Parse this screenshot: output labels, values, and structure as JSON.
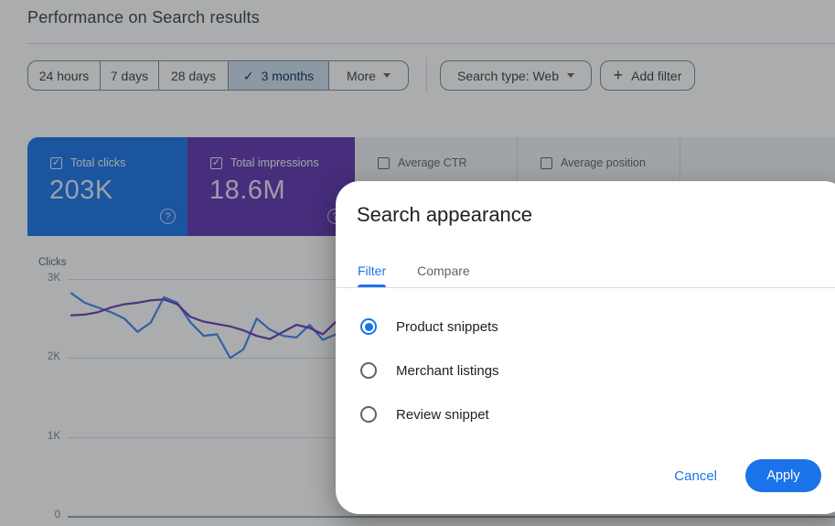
{
  "header": {
    "title": "Performance on Search results"
  },
  "filters": {
    "time_ranges": [
      {
        "label": "24 hours",
        "selected": false
      },
      {
        "label": "7 days",
        "selected": false
      },
      {
        "label": "28 days",
        "selected": false
      },
      {
        "label": "3 months",
        "selected": true
      },
      {
        "label": "More",
        "selected": false,
        "dropdown": true
      }
    ],
    "search_type": {
      "label": "Search type: Web"
    },
    "add_filter": {
      "label": "Add filter"
    }
  },
  "metrics": [
    {
      "label": "Total clicks",
      "value": "203K",
      "checked": true,
      "color": "#1a73e8"
    },
    {
      "label": "Total impressions",
      "value": "18.6M",
      "checked": true,
      "color": "#5e35b1"
    },
    {
      "label": "Average CTR",
      "checked": false
    },
    {
      "label": "Average position",
      "checked": false
    }
  ],
  "chart_data": {
    "type": "line",
    "ylabel": "Clicks",
    "yticks": [
      "3K",
      "2K",
      "1K",
      "0"
    ],
    "ylim": [
      0,
      3000
    ],
    "grid": true,
    "legend": false,
    "note": "x axis (dates) hidden behind dialog; values estimated from gridlines, clicks-axis units",
    "series": [
      {
        "name": "Total clicks",
        "color": "#4285f4",
        "values": [
          2820,
          2700,
          2640,
          2580,
          2500,
          2330,
          2450,
          2770,
          2700,
          2450,
          2280,
          2300,
          2000,
          2110,
          2500,
          2360,
          2280,
          2260,
          2420,
          2230,
          2300,
          2360
        ]
      },
      {
        "name": "Total impressions",
        "color": "#673ab7",
        "values": [
          2540,
          2550,
          2580,
          2640,
          2680,
          2700,
          2730,
          2740,
          2680,
          2520,
          2460,
          2430,
          2400,
          2350,
          2280,
          2240,
          2330,
          2420,
          2380,
          2300,
          2460,
          2660
        ]
      }
    ]
  },
  "dialog": {
    "title": "Search appearance",
    "tabs": [
      {
        "label": "Filter",
        "active": true
      },
      {
        "label": "Compare",
        "active": false
      }
    ],
    "options": [
      {
        "label": "Product snippets",
        "selected": true
      },
      {
        "label": "Merchant listings",
        "selected": false
      },
      {
        "label": "Review snippet",
        "selected": false
      }
    ],
    "cancel_label": "Cancel",
    "apply_label": "Apply"
  },
  "colors": {
    "accent_blue": "#1a73e8",
    "selected_chip_bg": "#cfe0f1",
    "selected_chip_text": "#0d2c54",
    "scrim": "rgba(32,36,40,0.38)"
  }
}
